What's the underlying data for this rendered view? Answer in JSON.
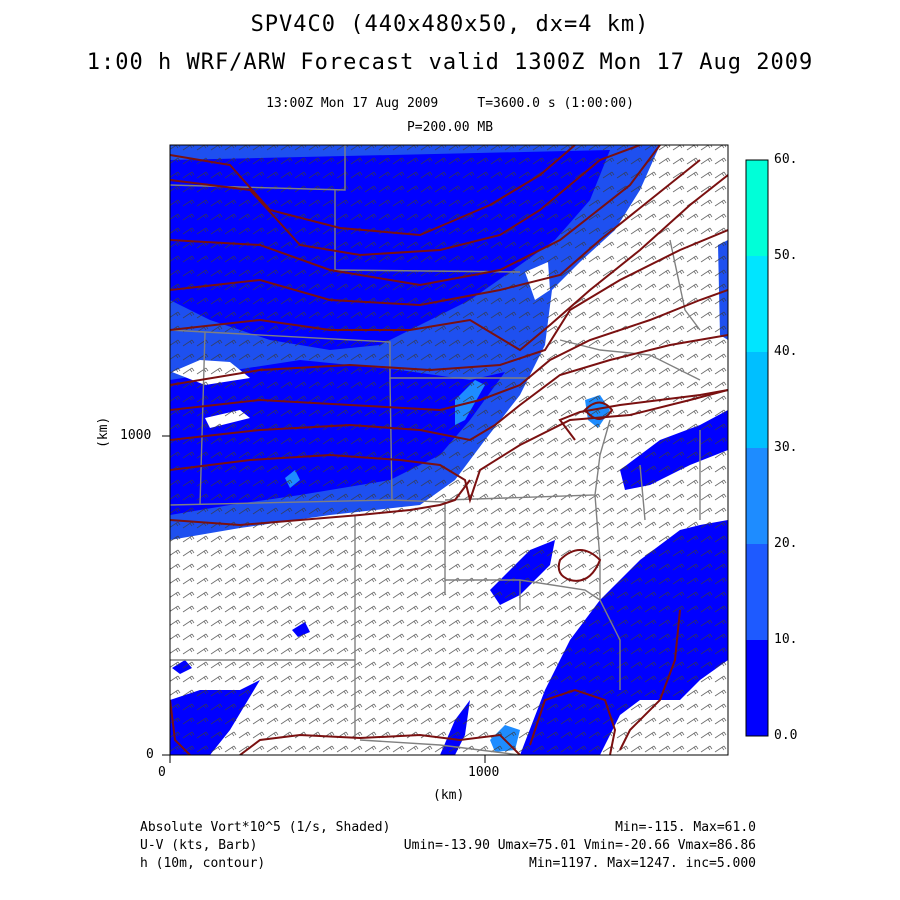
{
  "header": {
    "title": "SPV4C0 (440x480x50, dx=4 km)",
    "subtitle": "1:00 h WRF/ARW Forecast valid 1300Z Mon 17 Aug 2009",
    "time_line": "13:00Z Mon 17 Aug 2009     T=3600.0 s (1:00:00)",
    "level_line": "P=200.00 MB"
  },
  "axes": {
    "x_label": "(km)",
    "y_label": "(km)",
    "x_ticks": [
      "0",
      "1000"
    ],
    "y_ticks": [
      "0",
      "1000"
    ]
  },
  "colorbar": {
    "labels": [
      "0.0",
      "10.",
      "20.",
      "30.",
      "40.",
      "50.",
      "60."
    ],
    "colors": [
      "#0000ff",
      "#1e5aff",
      "#1e8cff",
      "#00bfff",
      "#00e5ff",
      "#00ffd8"
    ]
  },
  "map_colors": {
    "dark_blue": "#0000ff",
    "mid_blue": "#1e50f0",
    "light_blue": "#1e8cff",
    "contour": "#7a1010",
    "border": "#808080",
    "barb": "#3a3a3a"
  },
  "footer": {
    "row1_left": "Absolute Vort*10^5 (1/s, Shaded)",
    "row1_right": "Min=-115. Max=61.0",
    "row2_left": "U-V (kts, Barb)",
    "row2_right": "Umin=-13.90 Umax=75.01 Vmin=-20.66 Vmax=86.86",
    "row3_left": "h (10m, contour)",
    "row3_right": "Min=1197. Max=1247. inc=5.000"
  }
}
